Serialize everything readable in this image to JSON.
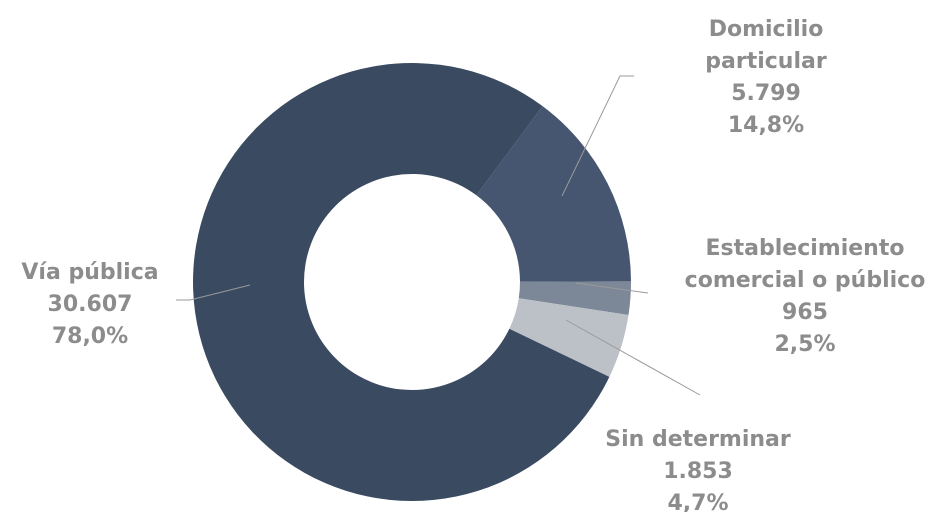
{
  "chart_data": {
    "type": "pie",
    "donut": true,
    "title": "",
    "legend": "none",
    "slices": [
      {
        "label_lines": [
          "Domicilio",
          "particular"
        ],
        "value": 5799,
        "value_text": "5.799",
        "percent": 14.8,
        "percent_text": "14,8%",
        "color": "#465670"
      },
      {
        "label_lines": [
          "Establecimiento",
          "comercial o público"
        ],
        "value": 965,
        "value_text": "965",
        "percent": 2.5,
        "percent_text": "2,5%",
        "color": "#7c8797"
      },
      {
        "label_lines": [
          "Sin determinar"
        ],
        "value": 1853,
        "value_text": "1.853",
        "percent": 4.7,
        "percent_text": "4,7%",
        "color": "#bcc1c8"
      },
      {
        "label_lines": [
          "Vía pública"
        ],
        "value": 30607,
        "value_text": "30.607",
        "percent": 78.0,
        "percent_text": "78,0%",
        "color": "#3a4a60"
      }
    ]
  }
}
